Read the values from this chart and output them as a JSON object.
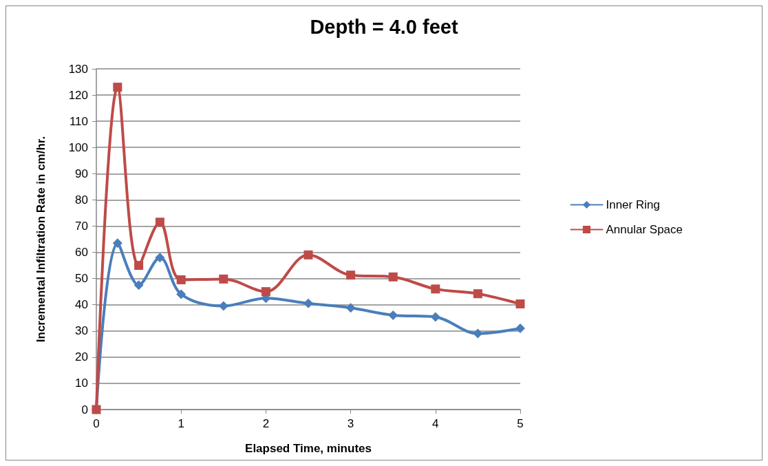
{
  "chart_data": {
    "type": "line",
    "title": "Depth = 4.0 feet",
    "xlabel": "Elapsed Time, minutes",
    "ylabel": "Incremental Infiltration Rate in cm/hr.",
    "x": [
      0,
      0.25,
      0.5,
      0.75,
      1,
      1.5,
      2,
      2.5,
      3,
      3.5,
      4,
      4.5,
      5
    ],
    "series": [
      {
        "name": "Inner Ring",
        "color": "#4a7ebb",
        "marker": "diamond",
        "values": [
          0,
          63.5,
          47.5,
          58,
          44,
          39.5,
          42.5,
          40.5,
          38.8,
          36,
          35.3,
          29,
          31
        ]
      },
      {
        "name": "Annular Space",
        "color": "#be4b48",
        "marker": "square",
        "values": [
          0,
          123,
          55,
          71.5,
          49.5,
          49.8,
          45,
          59,
          51.3,
          50.6,
          46,
          44.2,
          40.3
        ]
      }
    ],
    "xlim": [
      0,
      5
    ],
    "xticks": [
      0,
      1,
      2,
      3,
      4,
      5
    ],
    "ylim": [
      0,
      130
    ],
    "yticks": [
      0,
      10,
      20,
      30,
      40,
      50,
      60,
      70,
      80,
      90,
      100,
      110,
      120,
      130
    ],
    "grid": "y",
    "legend": "right",
    "line_style": "solid"
  }
}
